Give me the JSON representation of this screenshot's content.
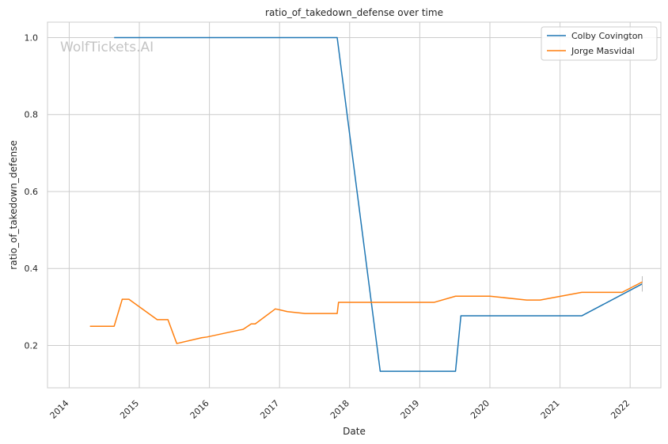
{
  "chart_data": {
    "type": "line",
    "title": "ratio_of_takedown_defense over time",
    "xlabel": "Date",
    "ylabel": "ratio_of_takedown_defense",
    "x_ticks": [
      "2014",
      "2015",
      "2016",
      "2017",
      "2018",
      "2019",
      "2020",
      "2021",
      "2022"
    ],
    "y_ticks": [
      "0.2",
      "0.4",
      "0.6",
      "0.8",
      "1.0"
    ],
    "xlim": [
      "2013-09-10",
      "2022-06-10"
    ],
    "ylim": [
      0.09,
      1.04
    ],
    "grid": true,
    "legend_position": "top-right",
    "watermark": "WolfTickets.AI",
    "series": [
      {
        "name": "Colby Covington",
        "color": "#1f77b4",
        "points": [
          [
            "2014-08-23",
            1.0
          ],
          [
            "2017-10-28",
            1.0
          ],
          [
            "2018-06-09",
            0.133
          ],
          [
            "2019-07-06",
            0.133
          ],
          [
            "2019-08-03",
            0.277
          ],
          [
            "2021-04-24",
            0.277
          ],
          [
            "2022-03-05",
            0.36
          ]
        ],
        "error_bar": {
          "date": "2022-03-05",
          "low": 0.34,
          "high": 0.38
        }
      },
      {
        "name": "Jorge Masvidal",
        "color": "#ff7f0e",
        "points": [
          [
            "2014-04-19",
            0.25
          ],
          [
            "2014-08-23",
            0.25
          ],
          [
            "2014-10-04",
            0.32
          ],
          [
            "2014-11-08",
            0.32
          ],
          [
            "2015-04-04",
            0.267
          ],
          [
            "2015-05-30",
            0.267
          ],
          [
            "2015-07-15",
            0.205
          ],
          [
            "2015-11-21",
            0.22
          ],
          [
            "2015-12-19",
            0.222
          ],
          [
            "2016-06-04",
            0.24
          ],
          [
            "2016-06-25",
            0.242
          ],
          [
            "2016-08-06",
            0.256
          ],
          [
            "2016-08-27",
            0.256
          ],
          [
            "2016-12-10",
            0.295
          ],
          [
            "2017-01-07",
            0.292
          ],
          [
            "2017-02-11",
            0.288
          ],
          [
            "2017-05-13",
            0.283
          ],
          [
            "2017-10-28",
            0.283
          ],
          [
            "2017-11-04",
            0.312
          ],
          [
            "2019-03-16",
            0.312
          ],
          [
            "2019-07-06",
            0.328
          ],
          [
            "2020-01-01",
            0.328
          ],
          [
            "2020-07-11",
            0.318
          ],
          [
            "2020-09-19",
            0.318
          ],
          [
            "2021-04-24",
            0.338
          ],
          [
            "2021-11-20",
            0.338
          ],
          [
            "2022-03-05",
            0.365
          ]
        ]
      }
    ]
  }
}
